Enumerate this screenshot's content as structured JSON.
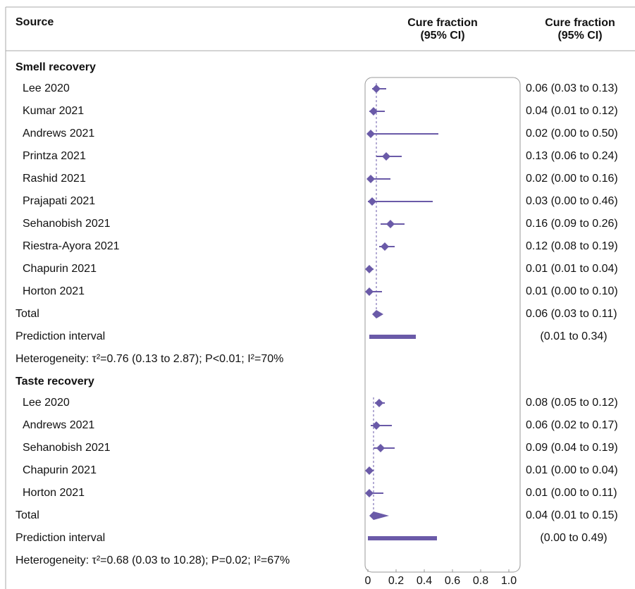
{
  "chart_data": {
    "type": "forest",
    "header": {
      "source": "Source",
      "plot_col": [
        "Cure fraction",
        "(95% CI)"
      ],
      "text_col": [
        "Cure fraction",
        "(95% CI)"
      ]
    },
    "color": "#6a5aa8",
    "xlim": [
      0,
      1
    ],
    "xticks": [
      0,
      0.2,
      0.4,
      0.6,
      0.8,
      {
        "value": 1,
        "label": "1.0"
      }
    ],
    "groups": [
      {
        "name": "Smell recovery",
        "studies": [
          "Lee 2020",
          "Kumar 2021",
          "Andrews 2021",
          "Printza 2021",
          "Rashid 2021",
          "Prajapati 2021",
          "Sehanobish 2021",
          "Riestra-Ayora 2021",
          "Chapurin 2021",
          "Horton 2021"
        ],
        "values": [
          0.06,
          0.04,
          0.02,
          0.13,
          0.02,
          0.03,
          0.16,
          0.12,
          0.01,
          0.01
        ],
        "lower": [
          0.03,
          0.01,
          0.0,
          0.06,
          0.0,
          0.0,
          0.09,
          0.08,
          0.01,
          0.0
        ],
        "upper": [
          0.13,
          0.12,
          0.5,
          0.24,
          0.16,
          0.46,
          0.26,
          0.19,
          0.04,
          0.1
        ],
        "value_labels": [
          "0.06 (0.03 to 0.13)",
          "0.04 (0.01 to 0.12)",
          "0.02 (0.00 to 0.50)",
          "0.13 (0.06 to 0.24)",
          "0.02 (0.00 to 0.16)",
          "0.03 (0.00 to 0.46)",
          "0.16 (0.09 to 0.26)",
          "0.12 (0.08 to 0.19)",
          "0.01 (0.01 to 0.04)",
          "0.01 (0.00 to 0.10)"
        ],
        "total": {
          "label": "Total",
          "value": 0.06,
          "lower": 0.03,
          "upper": 0.11,
          "value_label": "0.06 (0.03 to 0.11)"
        },
        "prediction": {
          "label": "Prediction interval",
          "lower": 0.01,
          "upper": 0.34,
          "value_label": "(0.01 to 0.34)"
        },
        "heterogeneity": "Heterogeneity: τ²=0.76 (0.13 to 2.87); P<0.01; I²=70%"
      },
      {
        "name": "Taste recovery",
        "studies": [
          "Lee 2020",
          "Andrews 2021",
          "Sehanobish 2021",
          "Chapurin 2021",
          "Horton 2021"
        ],
        "values": [
          0.08,
          0.06,
          0.09,
          0.01,
          0.01
        ],
        "lower": [
          0.05,
          0.02,
          0.04,
          0.0,
          0.0
        ],
        "upper": [
          0.12,
          0.17,
          0.19,
          0.04,
          0.11
        ],
        "value_labels": [
          "0.08 (0.05 to 0.12)",
          "0.06 (0.02 to 0.17)",
          "0.09 (0.04 to 0.19)",
          "0.01 (0.00 to 0.04)",
          "0.01 (0.00 to 0.11)"
        ],
        "total": {
          "label": "Total",
          "value": 0.04,
          "lower": 0.01,
          "upper": 0.15,
          "value_label": "0.04 (0.01 to 0.15)"
        },
        "prediction": {
          "label": "Prediction interval",
          "lower": 0.0,
          "upper": 0.49,
          "value_label": "(0.00 to 0.49)"
        },
        "heterogeneity": "Heterogeneity: τ²=0.68 (0.03 to 10.28); P=0.02; I²=67%"
      }
    ]
  }
}
